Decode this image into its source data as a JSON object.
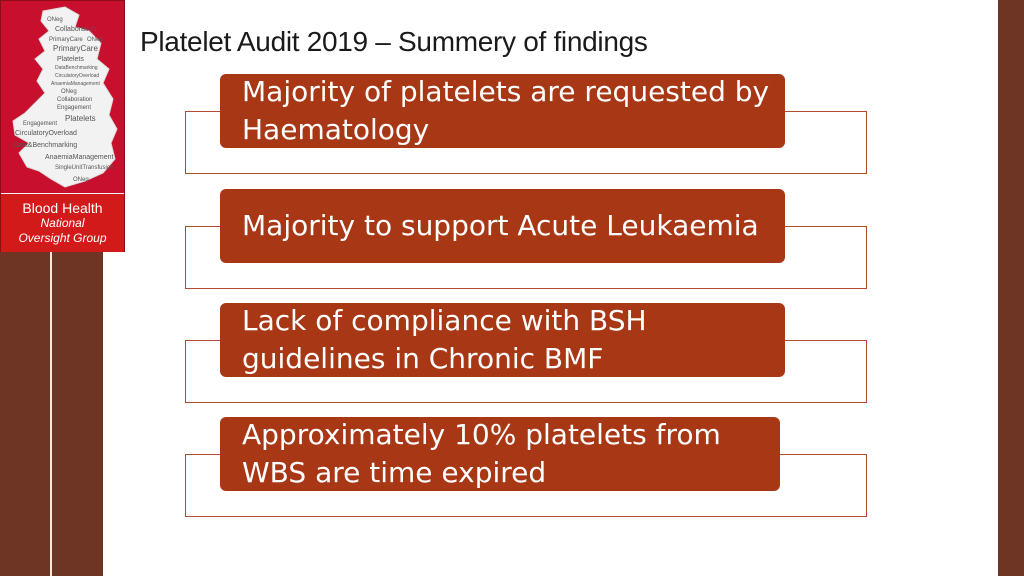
{
  "slide": {
    "title": "Platelet Audit 2019 – Summery of findings"
  },
  "logo": {
    "line1": "Blood Health",
    "line2": "National",
    "line3": "Oversight Group",
    "word_cloud": [
      "ONeg",
      "Collaboration",
      "PrimaryCare",
      "ONeg",
      "PrimaryCare",
      "Platelets",
      "DataBenchmarking",
      "CirculatoryOverload",
      "AnaemiaManagement",
      "ONeg",
      "Collaboration",
      "Engagement",
      "Platelets",
      "Engagement",
      "Platelets",
      "CirculatoryOverload",
      "Data&Benchmarking",
      "AnaemiaManagement",
      "SingleUnitTransfusion",
      "ONeg"
    ],
    "colors": {
      "background": "#c8102e",
      "map": "#f2f2f2"
    }
  },
  "findings": [
    {
      "text": "Majority of platelets are requested by Haematology"
    },
    {
      "text": "Majority to support Acute Leukaemia"
    },
    {
      "text": "Lack of compliance with BSH guidelines in Chronic BMF"
    },
    {
      "text": "Approximately 10% platelets from WBS are time expired"
    }
  ],
  "colors": {
    "accent": "#a83815",
    "band": "#6e3424",
    "outline": "#b34a30"
  }
}
